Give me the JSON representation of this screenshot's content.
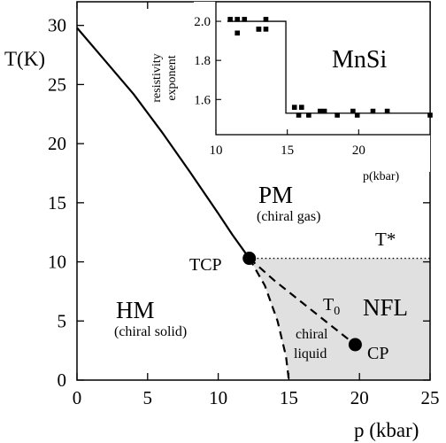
{
  "chart_data": [
    {
      "type": "line",
      "title": "",
      "xlabel": "p (kbar)",
      "ylabel": "T(K)",
      "xlim": [
        0,
        25
      ],
      "ylim": [
        0,
        32
      ],
      "xticks": [
        "0",
        "5",
        "10",
        "15",
        "20",
        "25"
      ],
      "yticks": [
        "0",
        "5",
        "10",
        "15",
        "20",
        "25",
        "30"
      ],
      "grid": false,
      "series": [
        {
          "role": "tc_line",
          "style": "solid",
          "x": [
            0,
            2,
            4,
            6,
            8,
            10,
            11,
            12.2
          ],
          "y": [
            29.8,
            27.0,
            24.2,
            21.0,
            17.6,
            14.1,
            12.3,
            10.3
          ]
        },
        {
          "role": "t_star",
          "style": "dotted",
          "x": [
            12.2,
            25
          ],
          "y": [
            10.3,
            10.3
          ]
        },
        {
          "role": "t0",
          "style": "dashed",
          "x": [
            12.2,
            14,
            16,
            18,
            19.7
          ],
          "y": [
            10.3,
            8.4,
            6.5,
            4.6,
            3.0
          ]
        },
        {
          "role": "first_order_boundary",
          "style": "dashed",
          "x": [
            12.2,
            13.3,
            14.2,
            14.8,
            15.0
          ],
          "y": [
            10.3,
            8.0,
            5.0,
            2.0,
            0
          ]
        }
      ],
      "points": [
        {
          "id": "tcp",
          "label": "TCP",
          "x": 12.2,
          "y": 10.3
        },
        {
          "id": "cp",
          "label": "CP",
          "x": 19.7,
          "y": 3.0
        }
      ],
      "shaded_region": {
        "fill": "#e0e0e0",
        "p_start": 12.2,
        "p_end": 25,
        "t_top": 10.3
      },
      "regions": [
        {
          "id": "pm",
          "label": "PM",
          "sublabel": "(chiral gas)"
        },
        {
          "id": "hm",
          "label": "HM",
          "sublabel": "(chiral solid)"
        },
        {
          "id": "nfl",
          "label": "NFL"
        },
        {
          "id": "chiral-liquid",
          "label": "chiral",
          "label2": "liquid"
        },
        {
          "id": "t0",
          "label": "T",
          "sub": "0"
        },
        {
          "id": "tstar",
          "label": "T*"
        }
      ]
    },
    {
      "type": "scatter",
      "title": "MnSi",
      "xlabel": "p(kbar)",
      "ylabel": "resistivity exponent",
      "ylabel_lines": [
        "resistivity",
        "exponent"
      ],
      "xlim": [
        10,
        25
      ],
      "ylim": [
        1.42,
        2.1
      ],
      "xticks": [
        "10",
        "15",
        "20"
      ],
      "yticks": [
        "1.6",
        "1.8",
        "2.0"
      ],
      "grid": false,
      "step_line": {
        "x": [
          10.8,
          14.9,
          14.9,
          25
        ],
        "y": [
          2.0,
          2.0,
          1.53,
          1.53
        ]
      },
      "x": [
        11.0,
        11.5,
        11.5,
        12.0,
        13.0,
        13.0,
        13.5,
        13.5,
        15.5,
        15.8,
        16.0,
        16.5,
        17.3,
        17.6,
        18.5,
        19.6,
        19.9,
        21.0,
        22.0,
        25.0
      ],
      "y": [
        2.01,
        1.94,
        2.01,
        2.01,
        1.96,
        1.96,
        1.96,
        2.01,
        1.56,
        1.52,
        1.56,
        1.52,
        1.54,
        1.54,
        1.52,
        1.54,
        1.52,
        1.54,
        1.54,
        1.52
      ]
    }
  ]
}
